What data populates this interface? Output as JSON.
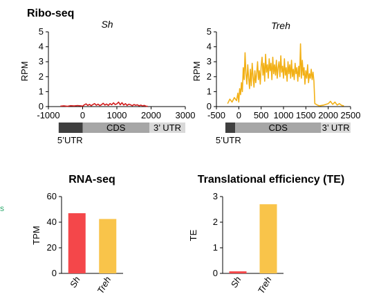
{
  "section_titles": {
    "ribo": "Ribo-seq",
    "rna": "RNA-seq",
    "te": "Translational efficiency (TE)"
  },
  "side_label": "s",
  "colors": {
    "sh": "#d11a1a",
    "treh": "#f2b016",
    "sh_bar": "#f4474a",
    "treh_bar": "#f9c44a",
    "utr5": "#3f3f3f",
    "cds": "#a6a6a6",
    "utr3": "#d9d9d9",
    "side_label": "#2aa86a"
  },
  "chart_data": [
    {
      "type": "line",
      "title": "Sh",
      "ylabel": "RPM",
      "xlim": [
        -1000,
        3000
      ],
      "ylim": [
        0,
        5
      ],
      "xticks": [
        -1000,
        0,
        1000,
        2000,
        3000
      ],
      "yticks": [
        0,
        1,
        2,
        3,
        4,
        5
      ],
      "series": [
        {
          "color": "#d11a1a",
          "x": [
            -650,
            -550,
            -450,
            -350,
            -250,
            -150,
            -50,
            0,
            50,
            100,
            150,
            200,
            250,
            300,
            350,
            400,
            450,
            500,
            550,
            600,
            650,
            700,
            750,
            800,
            850,
            900,
            950,
            1000,
            1050,
            1100,
            1150,
            1200,
            1250,
            1300,
            1350,
            1400,
            1450,
            1500,
            1550,
            1600,
            1650,
            1700,
            1750,
            1800,
            1850,
            1900
          ],
          "y": [
            0.03,
            0.05,
            0.02,
            0.06,
            0.04,
            0.07,
            0.05,
            0.03,
            0.12,
            0.18,
            0.08,
            0.15,
            0.06,
            0.14,
            0.2,
            0.09,
            0.16,
            0.07,
            0.12,
            0.22,
            0.1,
            0.17,
            0.08,
            0.2,
            0.12,
            0.25,
            0.14,
            0.18,
            0.3,
            0.12,
            0.26,
            0.1,
            0.2,
            0.08,
            0.16,
            0.12,
            0.06,
            0.14,
            0.09,
            0.12,
            0.05,
            0.1,
            0.04,
            0.08,
            0.03,
            0.02
          ]
        }
      ],
      "gene_model": {
        "segments": [
          {
            "label": "5’UTR",
            "start": -700,
            "end": 0
          },
          {
            "label": "CDS",
            "start": 0,
            "end": 1950
          },
          {
            "label": "3’ UTR",
            "start": 1950,
            "end": 3000
          }
        ]
      }
    },
    {
      "type": "line",
      "title": "Treh",
      "ylabel": "RPM",
      "xlim": [
        -500,
        2500
      ],
      "ylim": [
        0,
        5
      ],
      "xticks": [
        -500,
        0,
        500,
        1000,
        1500,
        2000,
        2500
      ],
      "yticks": [
        0,
        1,
        2,
        3,
        4,
        5
      ],
      "series": [
        {
          "color": "#f2b016",
          "x": [
            -250,
            -200,
            -150,
            -100,
            -50,
            -20,
            0,
            20,
            40,
            60,
            80,
            100,
            120,
            140,
            160,
            180,
            200,
            220,
            240,
            260,
            280,
            300,
            320,
            340,
            360,
            380,
            400,
            420,
            440,
            460,
            480,
            500,
            520,
            540,
            560,
            580,
            600,
            620,
            640,
            660,
            680,
            700,
            720,
            740,
            760,
            780,
            800,
            820,
            840,
            860,
            880,
            900,
            920,
            940,
            960,
            980,
            1000,
            1020,
            1040,
            1060,
            1080,
            1100,
            1120,
            1140,
            1160,
            1180,
            1200,
            1220,
            1240,
            1260,
            1280,
            1300,
            1320,
            1340,
            1360,
            1380,
            1400,
            1420,
            1440,
            1460,
            1480,
            1500,
            1520,
            1540,
            1560,
            1580,
            1600,
            1620,
            1640,
            1660,
            1680,
            1700,
            1760,
            1800,
            1900,
            2000,
            2050,
            2100,
            2150,
            2200,
            2250,
            2300,
            2350
          ],
          "y": [
            0.2,
            0.5,
            0.3,
            0.6,
            0.4,
            0.9,
            0.3,
            1.2,
            0.8,
            1.6,
            1.0,
            2.6,
            1.8,
            3.6,
            2.2,
            1.5,
            2.8,
            1.9,
            1.2,
            2.5,
            1.4,
            2.9,
            2.0,
            1.3,
            2.4,
            1.6,
            2.2,
            3.0,
            1.8,
            2.4,
            1.5,
            2.7,
            3.3,
            2.1,
            2.9,
            1.7,
            3.5,
            2.3,
            2.8,
            1.9,
            3.2,
            2.4,
            2.9,
            1.8,
            3.3,
            2.2,
            2.8,
            2.1,
            3.1,
            1.9,
            2.6,
            3.0,
            2.0,
            3.4,
            2.3,
            2.7,
            1.9,
            3.2,
            2.1,
            2.6,
            1.7,
            3.0,
            2.2,
            2.8,
            1.9,
            3.1,
            2.0,
            2.5,
            1.8,
            2.9,
            2.2,
            2.6,
            1.7,
            2.7,
            2.0,
            4.2,
            1.9,
            3.1,
            2.1,
            2.6,
            1.5,
            2.4,
            1.9,
            2.8,
            1.6,
            2.2,
            1.9,
            2.5,
            1.8,
            2.3,
            1.7,
            0.2,
            0.1,
            0.05,
            0.1,
            0.2,
            0.35,
            0.15,
            0.3,
            0.1,
            0.2,
            0.08,
            0.05
          ]
        }
      ],
      "gene_model": {
        "segments": [
          {
            "label": "5’UTR",
            "start": -300,
            "end": -80
          },
          {
            "label": "CDS",
            "start": -80,
            "end": 1840
          },
          {
            "label": "3’ UTR",
            "start": 1840,
            "end": 2500
          }
        ]
      }
    },
    {
      "type": "bar",
      "title": "RNA-seq",
      "ylabel": "TPM",
      "categories": [
        "Sh",
        "Treh"
      ],
      "values": [
        47,
        42.5
      ],
      "colors": [
        "#f4474a",
        "#f9c44a"
      ],
      "ylim": [
        0,
        60
      ],
      "yticks": [
        0,
        20,
        40,
        60
      ]
    },
    {
      "type": "bar",
      "title": "Translational efficiency (TE)",
      "ylabel": "TE",
      "categories": [
        "Sh",
        "Treh"
      ],
      "values": [
        0.08,
        2.7
      ],
      "colors": [
        "#f4474a",
        "#f9c44a"
      ],
      "ylim": [
        0,
        3
      ],
      "yticks": [
        0,
        1,
        2,
        3
      ]
    }
  ]
}
